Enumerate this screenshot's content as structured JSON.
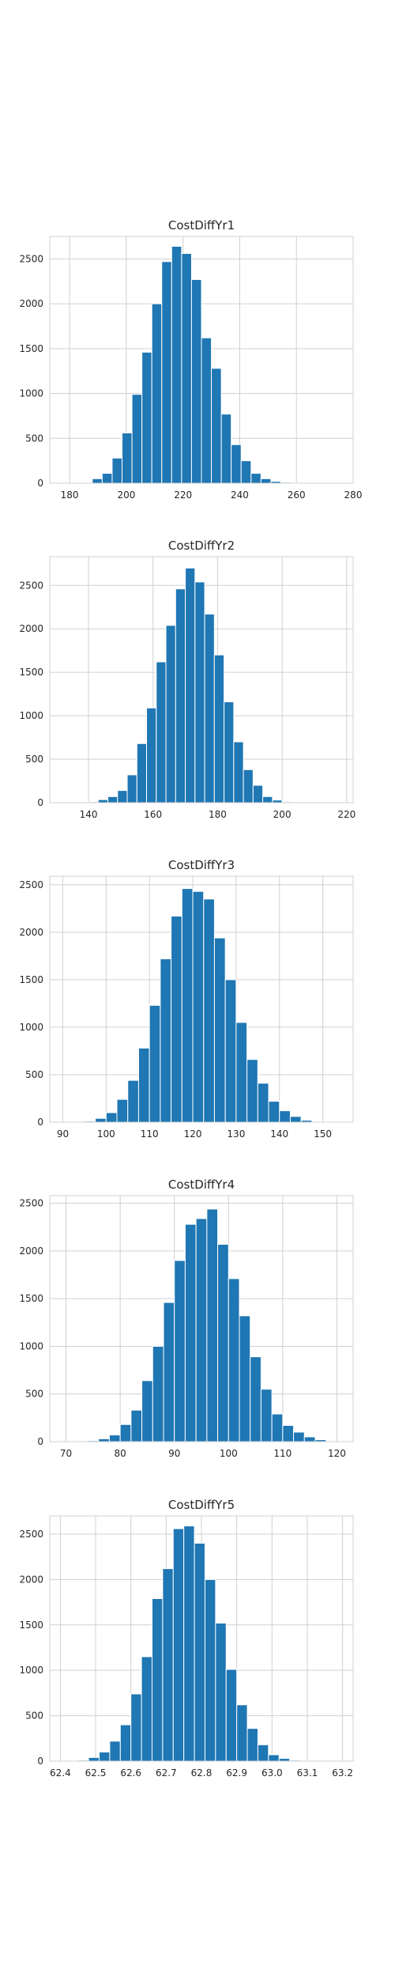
{
  "chart_data": [
    {
      "type": "bar",
      "title": "CostDiffYr1",
      "xlabel": "",
      "ylabel": "",
      "xlim": [
        173,
        280
      ],
      "ylim": [
        0,
        2750
      ],
      "xticks": [
        180,
        200,
        220,
        240,
        260,
        280
      ],
      "yticks": [
        0,
        500,
        1000,
        1500,
        2000,
        2500
      ],
      "grid": true,
      "color": "#1f77b4",
      "bin_edges": [
        188.0,
        191.5,
        195.0,
        198.5,
        202.0,
        205.5,
        209.0,
        212.5,
        216.0,
        219.5,
        223.0,
        226.5,
        230.0,
        233.5,
        237.0,
        240.5,
        244.0,
        247.5,
        251.0,
        254.5,
        258.0,
        261.5,
        265.0
      ],
      "values": [
        50,
        110,
        280,
        560,
        990,
        1460,
        2000,
        2470,
        2640,
        2560,
        2270,
        1620,
        1280,
        770,
        430,
        250,
        110,
        50,
        20,
        10,
        4,
        2
      ]
    },
    {
      "type": "bar",
      "title": "CostDiffYr2",
      "xlabel": "",
      "ylabel": "",
      "xlim": [
        128,
        222
      ],
      "ylim": [
        0,
        2830
      ],
      "xticks": [
        140,
        160,
        180,
        200,
        220
      ],
      "yticks": [
        0,
        500,
        1000,
        1500,
        2000,
        2500
      ],
      "grid": true,
      "color": "#1f77b4",
      "bin_edges": [
        140.0,
        143.0,
        146.0,
        149.0,
        152.0,
        155.0,
        158.0,
        161.0,
        164.0,
        167.0,
        170.0,
        173.0,
        176.0,
        179.0,
        182.0,
        185.0,
        188.0,
        191.0,
        194.0,
        197.0,
        200.0,
        203.0,
        206.0,
        209.0
      ],
      "values": [
        10,
        35,
        70,
        140,
        320,
        680,
        1090,
        1620,
        2040,
        2460,
        2700,
        2540,
        2170,
        1700,
        1160,
        700,
        380,
        200,
        70,
        30,
        10,
        4,
        2
      ]
    },
    {
      "type": "bar",
      "title": "CostDiffYr3",
      "xlabel": "",
      "ylabel": "",
      "xlim": [
        87,
        157
      ],
      "ylim": [
        0,
        2590
      ],
      "xticks": [
        90,
        100,
        110,
        120,
        130,
        140,
        150
      ],
      "yticks": [
        0,
        500,
        1000,
        1500,
        2000,
        2500
      ],
      "grid": true,
      "color": "#1f77b4",
      "bin_edges": [
        95.0,
        97.5,
        100.0,
        102.5,
        105.0,
        107.5,
        110.0,
        112.5,
        115.0,
        117.5,
        120.0,
        122.5,
        125.0,
        127.5,
        130.0,
        132.5,
        135.0,
        137.5,
        140.0,
        142.5,
        145.0,
        147.5,
        150.0
      ],
      "values": [
        10,
        40,
        100,
        240,
        440,
        780,
        1230,
        1720,
        2170,
        2460,
        2430,
        2350,
        1940,
        1500,
        1050,
        660,
        410,
        220,
        120,
        60,
        20,
        5
      ]
    },
    {
      "type": "bar",
      "title": "CostDiffYr4",
      "xlabel": "",
      "ylabel": "",
      "xlim": [
        67,
        123
      ],
      "ylim": [
        0,
        2580
      ],
      "xticks": [
        70,
        80,
        90,
        100,
        110,
        120
      ],
      "yticks": [
        0,
        500,
        1000,
        1500,
        2000,
        2500
      ],
      "grid": true,
      "color": "#1f77b4",
      "bin_edges": [
        74.0,
        76.0,
        78.0,
        80.0,
        82.0,
        84.0,
        86.0,
        88.0,
        90.0,
        92.0,
        94.0,
        96.0,
        98.0,
        100.0,
        102.0,
        104.0,
        106.0,
        108.0,
        110.0,
        112.0,
        114.0,
        116.0,
        118.0
      ],
      "values": [
        10,
        30,
        70,
        180,
        330,
        640,
        1000,
        1460,
        1900,
        2280,
        2340,
        2440,
        2070,
        1710,
        1320,
        890,
        550,
        290,
        170,
        100,
        50,
        20
      ]
    },
    {
      "type": "bar",
      "title": "CostDiffYr5",
      "xlabel": "",
      "ylabel": "",
      "xlim": [
        62.37,
        63.23
      ],
      "ylim": [
        0,
        2700
      ],
      "xticks": [
        62.4,
        62.5,
        62.6,
        62.7,
        62.8,
        62.9,
        63.0,
        63.1,
        63.2
      ],
      "yticks": [
        0,
        500,
        1000,
        1500,
        2000,
        2500
      ],
      "grid": true,
      "color": "#1f77b4",
      "bin_edges": [
        62.45,
        62.48,
        62.51,
        62.54,
        62.57,
        62.6,
        62.63,
        62.66,
        62.69,
        62.72,
        62.75,
        62.78,
        62.81,
        62.84,
        62.87,
        62.9,
        62.93,
        62.96,
        62.99,
        63.02,
        63.05,
        63.08,
        63.11
      ],
      "values": [
        10,
        40,
        100,
        220,
        400,
        740,
        1150,
        1790,
        2120,
        2560,
        2590,
        2400,
        2000,
        1520,
        1010,
        620,
        360,
        180,
        70,
        30,
        10,
        5
      ]
    }
  ]
}
